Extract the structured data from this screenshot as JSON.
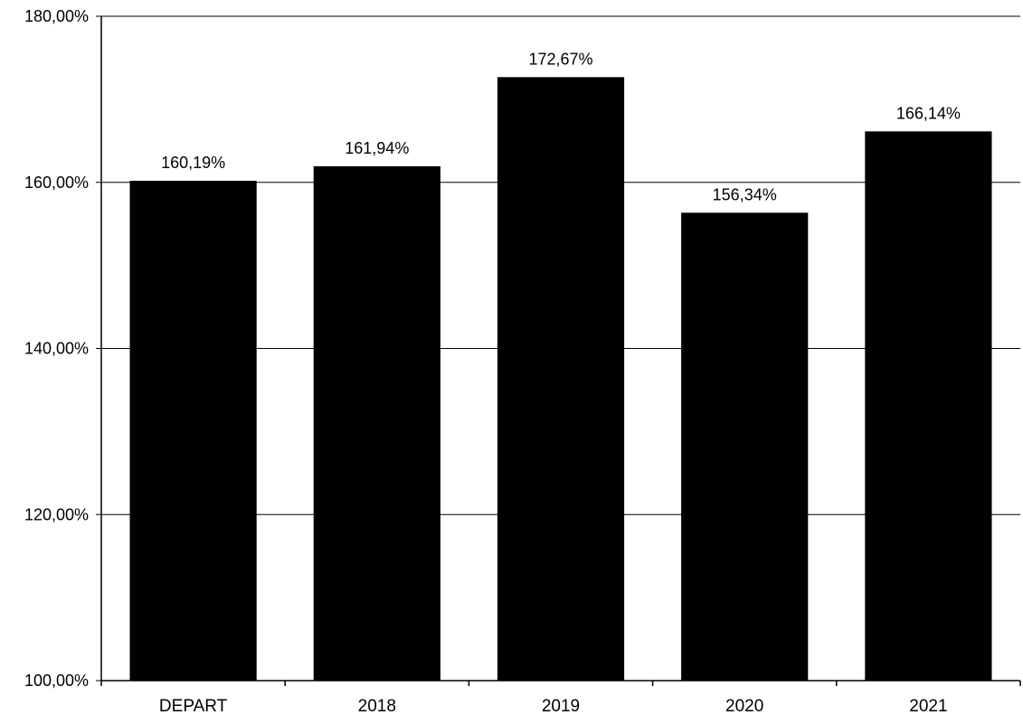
{
  "chart_data": {
    "type": "bar",
    "title": "",
    "xlabel": "",
    "ylabel": "",
    "categories": [
      "DEPART",
      "2018",
      "2019",
      "2020",
      "2021"
    ],
    "values": [
      160.19,
      161.94,
      172.67,
      156.34,
      166.14
    ],
    "value_labels": [
      "160,19%",
      "161,94%",
      "172,67%",
      "156,34%",
      "166,14%"
    ],
    "ylim": [
      100,
      180
    ],
    "yticks": [
      100,
      120,
      140,
      160,
      180
    ],
    "ytick_labels": [
      "100,00%",
      "120,00%",
      "140,00%",
      "160,00%",
      "180,00%"
    ],
    "grid": true,
    "legend": "none",
    "colors": {
      "bar": "#000000",
      "grid": "#000000",
      "background": "#ffffff"
    }
  }
}
